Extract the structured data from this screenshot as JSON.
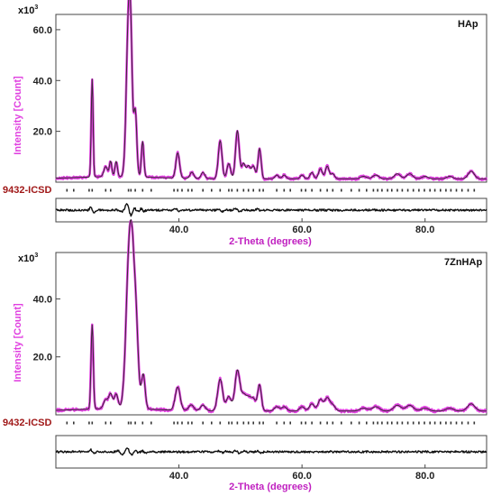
{
  "colors": {
    "observed": "#e040e0",
    "calculated": "#3a2a35",
    "difference": "#111111",
    "ylabel": "#e040e0",
    "xlabel": "#c020c0",
    "reference_label": "#a01818",
    "frame": "#444444"
  },
  "chart_data": [
    {
      "type": "line",
      "sample_label": "HAp",
      "multiplier_base": "x10",
      "multiplier_exp": "3",
      "ylabel": "Intensity [Count]",
      "xlabel": "2-Theta (degrees)",
      "reference_label": "9432-ICSD",
      "xlim": [
        20,
        90
      ],
      "ylim": [
        0,
        66
      ],
      "x_ticks": [
        "40.0",
        "60.0",
        "80.0"
      ],
      "y_ticks": [
        "20.0",
        "40.0",
        "60.0"
      ],
      "series": [
        {
          "name": "Observed",
          "style": "points",
          "peaks": [
            [
              25.9,
              38.5,
              0.15
            ],
            [
              28.1,
              4,
              0.3
            ],
            [
              28.9,
              6,
              0.2
            ],
            [
              29.8,
              6,
              0.2
            ],
            [
              31.8,
              60,
              0.35
            ],
            [
              32.2,
              32,
              0.25
            ],
            [
              32.9,
              26,
              0.25
            ],
            [
              34.1,
              14,
              0.2
            ],
            [
              39.8,
              10,
              0.3
            ],
            [
              42.1,
              2.5,
              0.3
            ],
            [
              43.9,
              2.5,
              0.3
            ],
            [
              46.7,
              15,
              0.3
            ],
            [
              48.1,
              6,
              0.3
            ],
            [
              49.5,
              19,
              0.3
            ],
            [
              50.5,
              6,
              0.3
            ],
            [
              51.3,
              5,
              0.3
            ],
            [
              52.1,
              5,
              0.3
            ],
            [
              53.1,
              12,
              0.25
            ],
            [
              55.9,
              1.5,
              0.3
            ],
            [
              57.1,
              1.5,
              0.3
            ],
            [
              60.0,
              1.5,
              0.3
            ],
            [
              61.6,
              2.5,
              0.3
            ],
            [
              63.0,
              4,
              0.3
            ],
            [
              64.1,
              5,
              0.3
            ],
            [
              65.0,
              2,
              0.3
            ],
            [
              70.0,
              1,
              0.5
            ],
            [
              72.0,
              1.5,
              0.5
            ],
            [
              75.5,
              2,
              0.5
            ],
            [
              77.5,
              2,
              0.5
            ],
            [
              80.0,
              1,
              0.5
            ],
            [
              84.0,
              1,
              0.5
            ],
            [
              87.5,
              3,
              0.5
            ]
          ]
        },
        {
          "name": "Calculated",
          "style": "line"
        },
        {
          "name": "Difference",
          "style": "line"
        }
      ],
      "reference_peaks_2theta": [
        21.8,
        22.9,
        25.4,
        25.9,
        28.1,
        28.9,
        31.8,
        32.2,
        32.9,
        34.1,
        35.5,
        39.2,
        39.8,
        40.5,
        41.5,
        42.1,
        43.9,
        45.3,
        46.7,
        48.1,
        48.6,
        49.5,
        50.5,
        51.3,
        52.1,
        53.1,
        53.7,
        55.9,
        57.1,
        58.1,
        59.9,
        60.6,
        61.6,
        63.0,
        64.1,
        65.0,
        66.4,
        68.0,
        69.3,
        70.5,
        71.6,
        72.3,
        73.0,
        73.9,
        74.6,
        75.5,
        76.3,
        77.2,
        78.1,
        79.0,
        79.9,
        80.8,
        81.6,
        82.5,
        83.4,
        84.2,
        85.1,
        86.0,
        87.0,
        88.0
      ]
    },
    {
      "type": "line",
      "sample_label": "7ZnHAp",
      "multiplier_base": "x10",
      "multiplier_exp": "3",
      "ylabel": "Intensity [Count]",
      "xlabel": "2-Theta (degrees)",
      "reference_label": "9432-ICSD",
      "xlim": [
        20,
        90
      ],
      "ylim": [
        0,
        56
      ],
      "x_ticks": [
        "40.0",
        "60.0",
        "80.0"
      ],
      "y_ticks": [
        "20.0",
        "40.0"
      ],
      "series": [
        {
          "name": "Observed",
          "style": "points",
          "peaks": [
            [
              25.9,
              29,
              0.18
            ],
            [
              28.1,
              3,
              0.35
            ],
            [
              28.9,
              5,
              0.3
            ],
            [
              29.8,
              5,
              0.3
            ],
            [
              31.9,
              50,
              0.5
            ],
            [
              32.5,
              30,
              0.4
            ],
            [
              33.1,
              22,
              0.35
            ],
            [
              34.2,
              12,
              0.3
            ],
            [
              39.8,
              8,
              0.4
            ],
            [
              42.0,
              2,
              0.4
            ],
            [
              43.9,
              2,
              0.4
            ],
            [
              46.7,
              11,
              0.4
            ],
            [
              48.1,
              5,
              0.4
            ],
            [
              49.5,
              14,
              0.4
            ],
            [
              50.5,
              5,
              0.4
            ],
            [
              51.3,
              4,
              0.4
            ],
            [
              52.1,
              4,
              0.4
            ],
            [
              53.1,
              9,
              0.3
            ],
            [
              55.9,
              1.5,
              0.4
            ],
            [
              57.1,
              1.5,
              0.4
            ],
            [
              60.0,
              1.5,
              0.4
            ],
            [
              61.6,
              2.5,
              0.4
            ],
            [
              63.0,
              4,
              0.4
            ],
            [
              64.1,
              4.5,
              0.4
            ],
            [
              65.0,
              2,
              0.4
            ],
            [
              70.0,
              1,
              0.6
            ],
            [
              72.0,
              1.5,
              0.6
            ],
            [
              75.5,
              2,
              0.6
            ],
            [
              77.5,
              2,
              0.6
            ],
            [
              80.0,
              1,
              0.6
            ],
            [
              84.0,
              1,
              0.6
            ],
            [
              87.5,
              2.5,
              0.6
            ]
          ]
        },
        {
          "name": "Calculated",
          "style": "line"
        },
        {
          "name": "Difference",
          "style": "line"
        }
      ],
      "reference_peaks_2theta": [
        21.8,
        22.9,
        25.4,
        25.9,
        28.1,
        28.9,
        31.8,
        32.2,
        32.9,
        34.1,
        35.5,
        39.2,
        39.8,
        40.5,
        41.5,
        42.1,
        43.9,
        45.3,
        46.7,
        48.1,
        48.6,
        49.5,
        50.5,
        51.3,
        52.1,
        53.1,
        53.7,
        55.9,
        57.1,
        58.1,
        59.9,
        60.6,
        61.6,
        63.0,
        64.1,
        65.0,
        66.4,
        68.0,
        69.3,
        70.5,
        71.6,
        72.3,
        73.0,
        73.9,
        74.6,
        75.5,
        76.3,
        77.2,
        78.1,
        79.0,
        79.9,
        80.8,
        81.6,
        82.5,
        83.4,
        84.2,
        85.1,
        86.0,
        87.0,
        88.0
      ]
    }
  ]
}
